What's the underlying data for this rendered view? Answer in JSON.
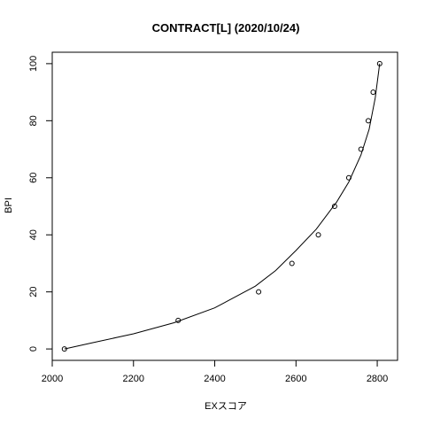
{
  "chart_data": {
    "type": "scatter",
    "title": "CONTRACT[L] (2020/10/24)",
    "xlabel": "EXスコア",
    "ylabel": "BPI",
    "xlim": [
      2000,
      2850
    ],
    "ylim": [
      -4,
      104
    ],
    "x_ticks": [
      2000,
      2200,
      2400,
      2600,
      2800
    ],
    "x_tick_labels": [
      "2000",
      "2200",
      "2400",
      "2600",
      "2800"
    ],
    "y_ticks": [
      0,
      20,
      40,
      60,
      80,
      100
    ],
    "y_tick_labels": [
      "0",
      "20",
      "40",
      "60",
      "80",
      "100"
    ],
    "grid": false,
    "legend": "none",
    "series": [
      {
        "type": "scatter",
        "marker": "open-circle",
        "points": [
          {
            "x": 2030,
            "y": 0
          },
          {
            "x": 2310,
            "y": 10
          },
          {
            "x": 2508,
            "y": 20
          },
          {
            "x": 2590,
            "y": 30
          },
          {
            "x": 2655,
            "y": 40
          },
          {
            "x": 2695,
            "y": 50
          },
          {
            "x": 2730,
            "y": 60
          },
          {
            "x": 2760,
            "y": 70
          },
          {
            "x": 2778,
            "y": 80
          },
          {
            "x": 2790,
            "y": 90
          },
          {
            "x": 2806,
            "y": 100
          }
        ]
      },
      {
        "type": "line",
        "points": [
          {
            "x": 2030,
            "y": 0
          },
          {
            "x": 2100,
            "y": 2.2
          },
          {
            "x": 2200,
            "y": 5.3
          },
          {
            "x": 2300,
            "y": 9.2
          },
          {
            "x": 2400,
            "y": 14.4
          },
          {
            "x": 2500,
            "y": 22.0
          },
          {
            "x": 2550,
            "y": 27.5
          },
          {
            "x": 2600,
            "y": 34.5
          },
          {
            "x": 2650,
            "y": 42.0
          },
          {
            "x": 2700,
            "y": 51.5
          },
          {
            "x": 2730,
            "y": 58.5
          },
          {
            "x": 2760,
            "y": 68.0
          },
          {
            "x": 2780,
            "y": 77.0
          },
          {
            "x": 2795,
            "y": 88.0
          },
          {
            "x": 2806,
            "y": 100
          }
        ]
      }
    ]
  }
}
